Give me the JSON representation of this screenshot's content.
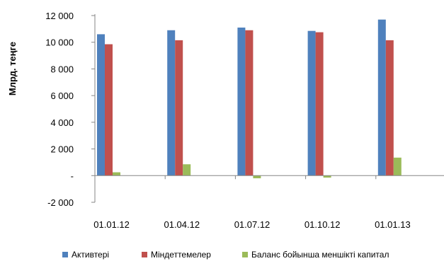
{
  "chart_data": {
    "type": "bar",
    "title": "",
    "xlabel": "",
    "ylabel": "Млрд. теңге",
    "categories": [
      "01.01.12",
      "01.04.12",
      "01.07.12",
      "01.10.12",
      "01.01.13"
    ],
    "series": [
      {
        "name": "Активтері",
        "color": "#4F81BD",
        "values": [
          10600,
          10900,
          11100,
          10850,
          11700
        ]
      },
      {
        "name": "Міндеттемелер",
        "color": "#C0504D",
        "values": [
          9850,
          10150,
          10900,
          10750,
          10150
        ]
      },
      {
        "name": "Баланс бойынша меншікті капитал",
        "color": "#9BBB59",
        "values": [
          250,
          850,
          -200,
          -150,
          1350
        ]
      }
    ],
    "ylim": [
      -2000,
      12000
    ],
    "yticks": [
      -2000,
      0,
      2000,
      4000,
      6000,
      8000,
      10000,
      12000
    ],
    "ytick_labels": [
      "-2 000",
      "-",
      "2 000",
      "4 000",
      "6 000",
      "8 000",
      "10 000",
      "12 000"
    ],
    "grid": false,
    "legend_position": "bottom"
  }
}
